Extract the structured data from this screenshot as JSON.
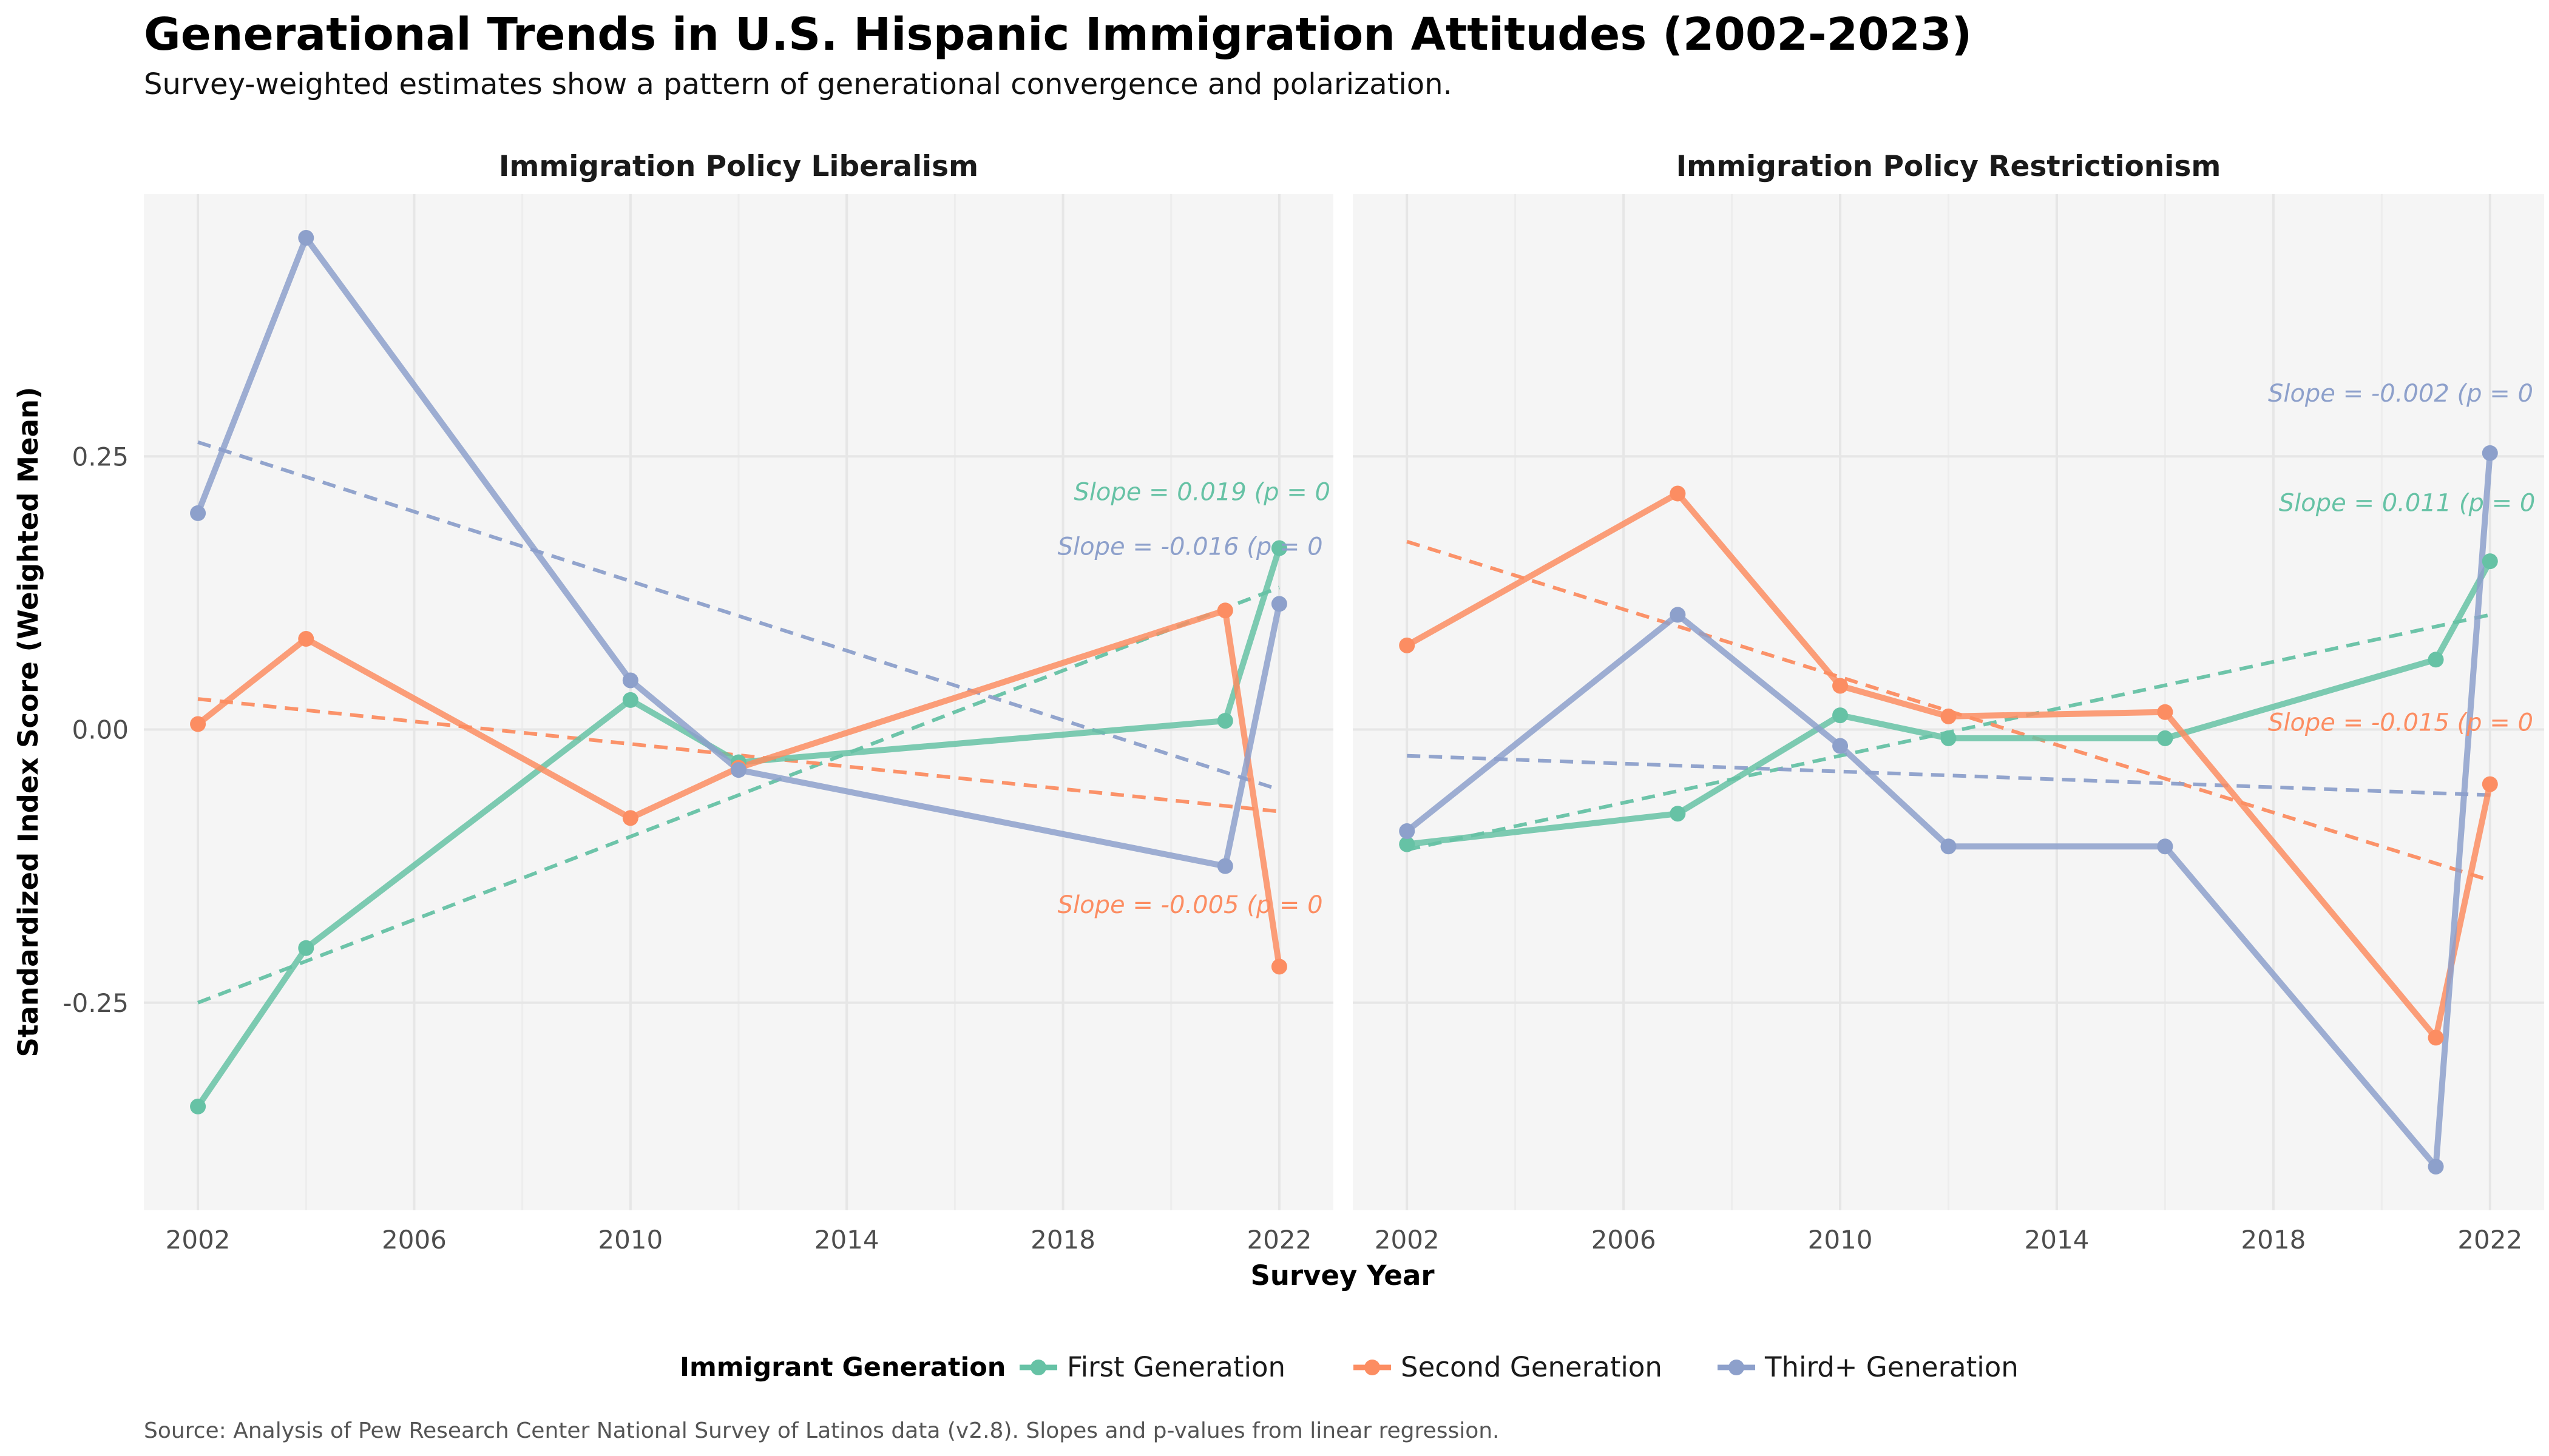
{
  "page": {
    "title": "Generational Trends in U.S. Hispanic Immigration Attitudes (2002-2023)",
    "subtitle": "Survey-weighted estimates show a pattern of generational convergence and polarization.",
    "caption": "Source: Analysis of Pew Research Center National Survey of Latinos data (v2.8). Slopes and p-values from linear regression.",
    "xlabel": "Survey Year",
    "ylabel": "Standardized Index Score (Weighted Mean)",
    "legend_title": "Immigrant Generation"
  },
  "colors": {
    "First Generation": "#66c2a5",
    "Second Generation": "#fc8d62",
    "Third+ Generation": "#8da0cb",
    "panel_background": "#f5f5f5",
    "grid": "#e6e6e6"
  },
  "chart_data": [
    {
      "type": "line",
      "title": "Immigration Policy Liberalism",
      "xlim": [
        2001,
        2023
      ],
      "ylim": [
        -0.44,
        0.49
      ],
      "x_ticks": [
        2002,
        2006,
        2010,
        2014,
        2018,
        2022
      ],
      "y_ticks": [
        -0.25,
        0.0,
        0.25
      ],
      "y_tick_labels": [
        "-0.25",
        "0.00",
        "0.25"
      ],
      "grid": true,
      "series": [
        {
          "name": "First Generation",
          "x": [
            2002,
            2004,
            2010,
            2012,
            2021,
            2022
          ],
          "y": [
            -0.345,
            -0.2,
            0.027,
            -0.03,
            0.008,
            0.166
          ],
          "trend": {
            "x": [
              2002,
              2022
            ],
            "y": [
              -0.25,
              0.13
            ]
          },
          "annotation": "Slope = 0.019 (p = 0",
          "annotation_pos": [
            2018.2,
            0.21
          ]
        },
        {
          "name": "Second Generation",
          "x": [
            2002,
            2004,
            2010,
            2012,
            2021,
            2022
          ],
          "y": [
            0.005,
            0.083,
            -0.081,
            -0.035,
            0.109,
            -0.217
          ],
          "trend": {
            "x": [
              2002,
              2022
            ],
            "y": [
              0.028,
              -0.075
            ]
          },
          "annotation": "Slope = -0.005 (p = 0",
          "annotation_pos": [
            2017.9,
            -0.168
          ]
        },
        {
          "name": "Third+ Generation",
          "x": [
            2002,
            2004,
            2010,
            2012,
            2021,
            2022
          ],
          "y": [
            0.198,
            0.45,
            0.045,
            -0.037,
            -0.125,
            0.115
          ],
          "trend": {
            "x": [
              2002,
              2022
            ],
            "y": [
              0.263,
              -0.055
            ]
          },
          "annotation": "Slope = -0.016 (p = 0",
          "annotation_pos": [
            2017.9,
            0.16
          ]
        }
      ]
    },
    {
      "type": "line",
      "title": "Immigration Policy Restrictionism",
      "xlim": [
        2001,
        2023
      ],
      "ylim": [
        -0.44,
        0.49
      ],
      "x_ticks": [
        2002,
        2006,
        2010,
        2014,
        2018,
        2022
      ],
      "y_ticks": [
        -0.25,
        0.0,
        0.25
      ],
      "y_tick_labels": [
        "-0.25",
        "0.00",
        "0.25"
      ],
      "grid": true,
      "series": [
        {
          "name": "First Generation",
          "x": [
            2002,
            2007,
            2010,
            2012,
            2016,
            2021,
            2022
          ],
          "y": [
            -0.105,
            -0.077,
            0.013,
            -0.008,
            -0.008,
            0.064,
            0.154
          ],
          "trend": {
            "x": [
              2002,
              2022
            ],
            "y": [
              -0.11,
              0.105
            ]
          },
          "annotation": "Slope = 0.011 (p = 0",
          "annotation_pos": [
            2018.1,
            0.2
          ]
        },
        {
          "name": "Second Generation",
          "x": [
            2002,
            2007,
            2010,
            2012,
            2016,
            2021,
            2022
          ],
          "y": [
            0.077,
            0.216,
            0.04,
            0.012,
            0.016,
            -0.282,
            -0.05
          ],
          "trend": {
            "x": [
              2002,
              2022
            ],
            "y": [
              0.172,
              -0.138
            ]
          },
          "annotation": "Slope = -0.015 (p = 0",
          "annotation_pos": [
            2017.9,
            -0.001
          ]
        },
        {
          "name": "Third+ Generation",
          "x": [
            2002,
            2007,
            2010,
            2012,
            2016,
            2021,
            2022
          ],
          "y": [
            -0.093,
            0.105,
            -0.015,
            -0.107,
            -0.107,
            -0.4,
            0.253
          ],
          "trend": {
            "x": [
              2002,
              2022
            ],
            "y": [
              -0.024,
              -0.06
            ]
          },
          "annotation": "Slope = -0.002 (p = 0",
          "annotation_pos": [
            2017.9,
            0.3
          ]
        }
      ]
    }
  ],
  "legend": {
    "placement": "bottom",
    "items": [
      "First Generation",
      "Second Generation",
      "Third+ Generation"
    ]
  }
}
